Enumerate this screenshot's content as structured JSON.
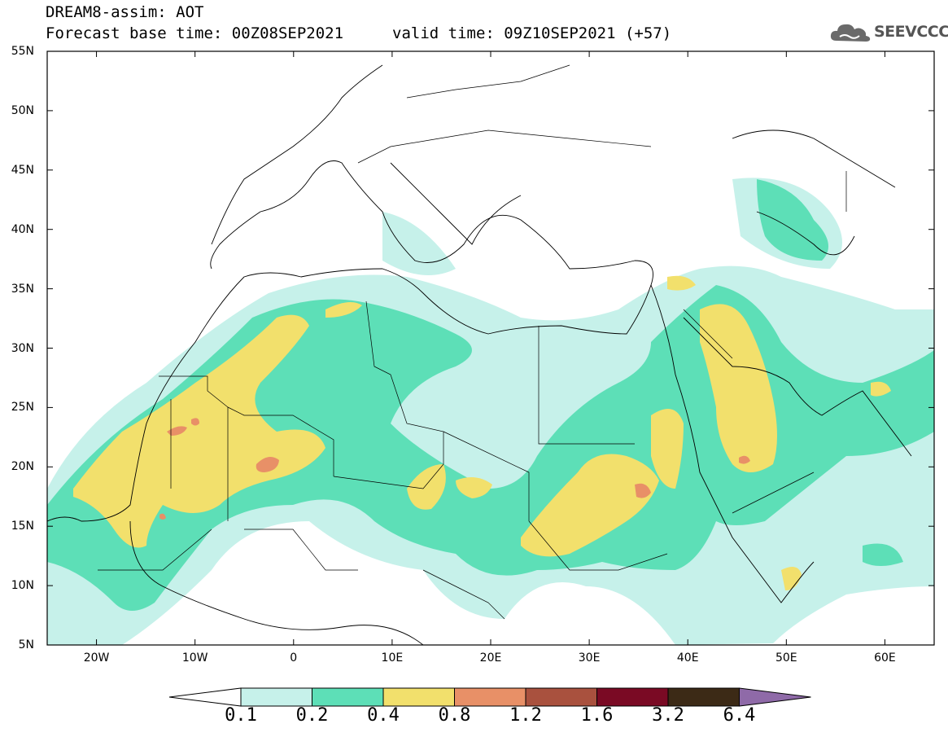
{
  "header": {
    "title_line1": "DREAM8-assim: AOT",
    "title_line2": "Forecast base time: 00Z08SEP2021",
    "valid_time": "valid time: 09Z10SEP2021 (+57)",
    "logo_text": "SEEVCCC"
  },
  "map": {
    "region": "North Africa / Middle East / Southern Europe",
    "lat_labels": [
      "55N",
      "50N",
      "45N",
      "40N",
      "35N",
      "30N",
      "25N",
      "20N",
      "15N",
      "10N",
      "5N"
    ],
    "lon_labels": [
      "20W",
      "10W",
      "0",
      "10E",
      "20E",
      "30E",
      "40E",
      "50E",
      "60E"
    ],
    "lat_range": [
      5,
      55
    ],
    "lon_range": [
      -25,
      65
    ]
  },
  "legend": {
    "thresholds": [
      "0.1",
      "0.2",
      "0.4",
      "0.8",
      "1.2",
      "1.6",
      "3.2",
      "6.4"
    ],
    "colors": [
      "#c6f1ea",
      "#5ddfb7",
      "#f2e06c",
      "#e89067",
      "#a9513e",
      "#7a0a24",
      "#3c2a16",
      "#8f6aa8"
    ]
  }
}
